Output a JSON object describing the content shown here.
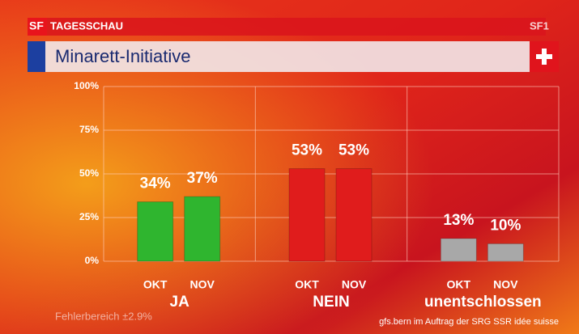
{
  "chart_data": {
    "type": "bar",
    "channel": "SF",
    "program": "TAGESSCHAU",
    "logo": "SF1",
    "title": "Minarett-Initiative",
    "categories": [
      "JA",
      "NEIN",
      "unentschlossen"
    ],
    "colors": [
      "#2fb52f",
      "#e01c1c",
      "#a8a8a8"
    ],
    "series": [
      {
        "name": "OKT",
        "values": [
          34,
          53,
          13
        ],
        "value_labels": [
          "34%",
          "53%",
          "13%"
        ]
      },
      {
        "name": "NOV",
        "values": [
          37,
          53,
          10
        ],
        "value_labels": [
          "37%",
          "53%",
          "10%"
        ]
      }
    ],
    "ylim": [
      0,
      100
    ],
    "yticks": [
      {
        "value": 0,
        "label": "0%"
      },
      {
        "value": 25,
        "label": "25%"
      },
      {
        "value": 50,
        "label": "50%"
      },
      {
        "value": 75,
        "label": "75%"
      },
      {
        "value": 100,
        "label": "100%"
      }
    ],
    "grid": true,
    "note": "Fehlerbereich ±2.9%",
    "source": "gfs.bern im Auftrag der SRG SSR idée suisse"
  }
}
